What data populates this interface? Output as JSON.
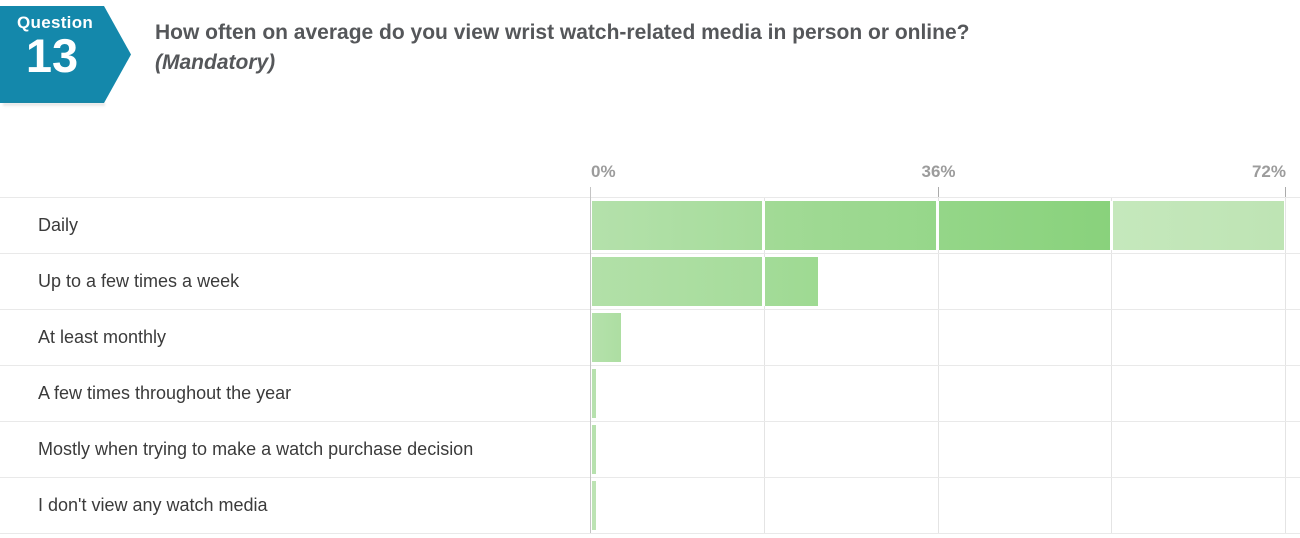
{
  "header": {
    "badge_label": "Question",
    "badge_number": "13",
    "title": "How often on average do you view wrist watch-related media in person or online?",
    "subtitle": "(Mandatory)"
  },
  "colors": {
    "badge_teal": "#1488ab",
    "title_gray": "#55575a",
    "bar_green_base": "#a5dc9a",
    "bar_green_dark": "#8bd37f",
    "bar_green_pale": "#c4e7bb",
    "axis_label_gray": "#9c9c9c",
    "gridline_gray": "#e4e4e4",
    "row_label_gray": "#3b3b3b"
  },
  "chart_data": {
    "type": "bar",
    "orientation": "horizontal",
    "title": "How often on average do you view wrist watch-related media in person or online?",
    "xlabel": "",
    "ylabel": "",
    "unit": "%",
    "xlim": [
      0,
      72
    ],
    "grid": true,
    "legend": false,
    "ticks": [
      {
        "pct": 0,
        "label": "0%"
      },
      {
        "pct": 18,
        "label": ""
      },
      {
        "pct": 36,
        "label": "36%"
      },
      {
        "pct": 54,
        "label": ""
      },
      {
        "pct": 72,
        "label": "72%"
      }
    ],
    "categories": [
      "Daily",
      "Up to a few times a week",
      "At least monthly",
      "A few times throughout the year",
      "Mostly when trying to make a watch purchase decision",
      "I don't view any watch media"
    ],
    "values": [
      72,
      23.8,
      3.4,
      0.6,
      0.7,
      0.5
    ],
    "rows": [
      {
        "label": "Daily",
        "value": 72,
        "segments": [
          {
            "from": 0,
            "to": 18,
            "c1": "#b4e1ab",
            "c2": "#a6dc9b"
          },
          {
            "from": 18,
            "to": 36,
            "c1": "#a2da96",
            "c2": "#96d78a"
          },
          {
            "from": 36,
            "to": 54,
            "c1": "#94d688",
            "c2": "#89d27c"
          },
          {
            "from": 54,
            "to": 72,
            "c1": "#c5e8bc",
            "c2": "#bee4b4"
          }
        ]
      },
      {
        "label": "Up to a few times a week",
        "value": 23.8,
        "segments": [
          {
            "from": 0,
            "to": 18,
            "c1": "#b2e0a8",
            "c2": "#a6dc9b"
          },
          {
            "from": 18,
            "to": 23.8,
            "c1": "#a3db98",
            "c2": "#9eda92"
          }
        ]
      },
      {
        "label": "At least monthly",
        "value": 3.4,
        "segments": [
          {
            "from": 0,
            "to": 3.4,
            "c1": "#b4e1ab",
            "c2": "#addea2"
          }
        ]
      },
      {
        "label": "A few times throughout the year",
        "value": 0.6,
        "segments": [
          {
            "from": 0,
            "to": 0.6,
            "c1": "#b7e1ae",
            "c2": "#b7e1ae"
          }
        ]
      },
      {
        "label": "Mostly when trying to make a watch purchase decision",
        "value": 0.7,
        "segments": [
          {
            "from": 0,
            "to": 0.7,
            "c1": "#b7e1ae",
            "c2": "#b7e1ae"
          }
        ]
      },
      {
        "label": "I don't view any watch media",
        "value": 0.5,
        "segments": [
          {
            "from": 0,
            "to": 0.5,
            "c1": "#bce3b3",
            "c2": "#bce3b3"
          }
        ]
      }
    ]
  }
}
